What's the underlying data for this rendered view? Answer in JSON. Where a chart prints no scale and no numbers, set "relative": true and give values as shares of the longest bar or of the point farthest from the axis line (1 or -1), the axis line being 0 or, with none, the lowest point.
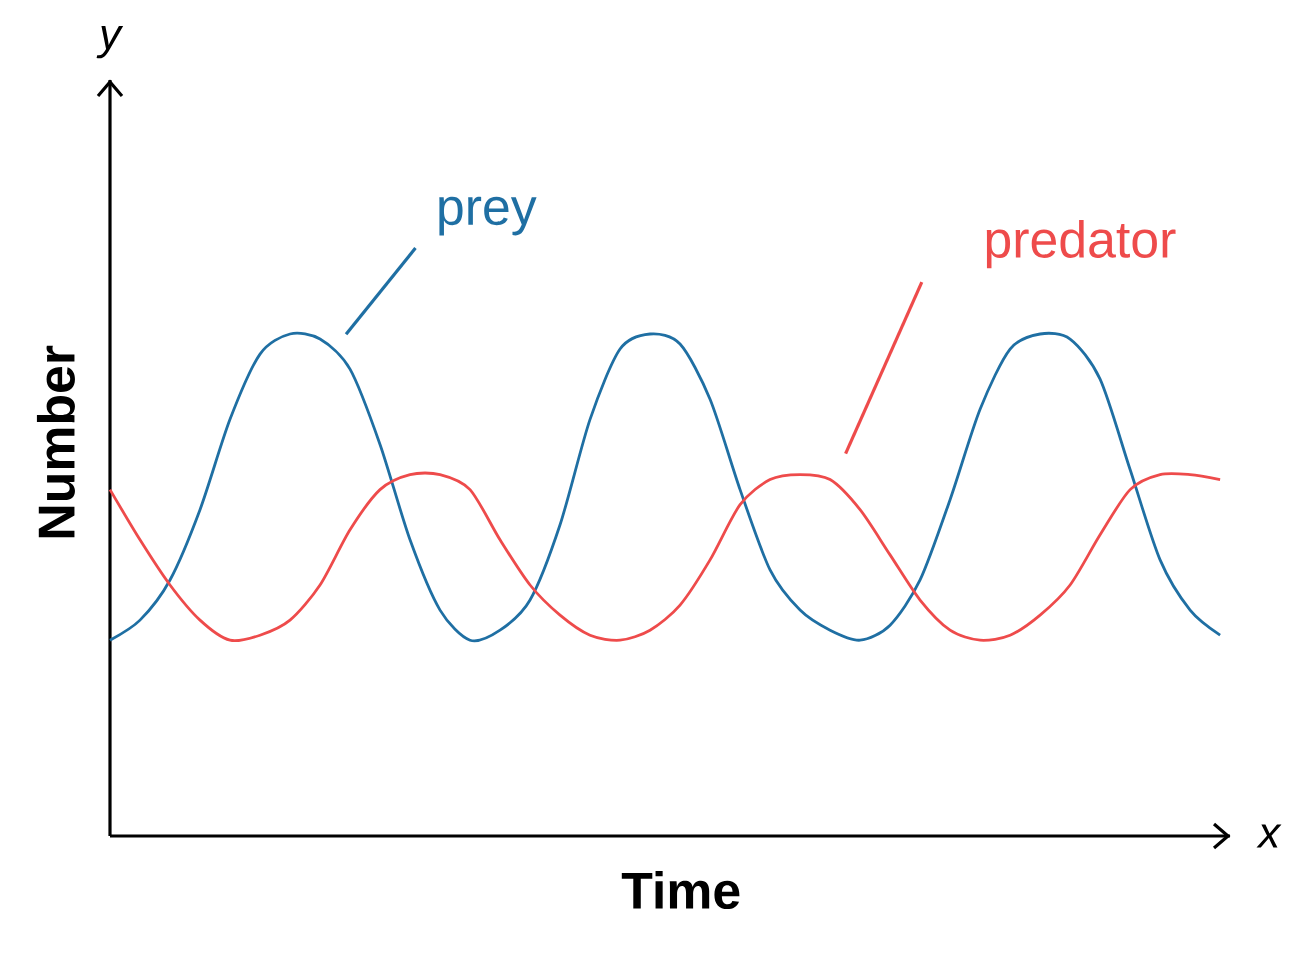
{
  "chart_data": {
    "type": "line",
    "relative": true,
    "xlabel": "Time",
    "ylabel": "Number",
    "annotations": [
      "x",
      "y"
    ],
    "categories": [
      null,
      null,
      null,
      null,
      null,
      null,
      null,
      null,
      null,
      null,
      null,
      null,
      null,
      null,
      null,
      null,
      null,
      null,
      null,
      null,
      null,
      null,
      null,
      null,
      null,
      null,
      null,
      null,
      null,
      null,
      null,
      null,
      null,
      null,
      null,
      null,
      null,
      null
    ],
    "series": [
      {
        "name": "prey",
        "color": "#1f6fa3",
        "values": [
          0.39,
          0.43,
          0.51,
          0.65,
          0.83,
          0.96,
          1.0,
          0.99,
          0.93,
          0.78,
          0.59,
          0.45,
          0.39,
          0.41,
          0.47,
          0.62,
          0.83,
          0.97,
          1.0,
          0.98,
          0.87,
          0.69,
          0.53,
          0.45,
          0.41,
          0.39,
          0.42,
          0.51,
          0.67,
          0.85,
          0.97,
          1.0,
          0.99,
          0.91,
          0.73,
          0.55,
          0.45,
          0.4
        ]
      },
      {
        "name": "predator",
        "color": "#ee4b4b",
        "values": [
          0.69,
          0.59,
          0.5,
          0.43,
          0.39,
          0.4,
          0.43,
          0.5,
          0.61,
          0.69,
          0.72,
          0.72,
          0.69,
          0.59,
          0.5,
          0.44,
          0.4,
          0.39,
          0.41,
          0.46,
          0.55,
          0.66,
          0.71,
          0.72,
          0.71,
          0.65,
          0.56,
          0.47,
          0.41,
          0.39,
          0.4,
          0.44,
          0.5,
          0.6,
          0.69,
          0.72,
          0.72,
          0.71
        ]
      }
    ]
  }
}
